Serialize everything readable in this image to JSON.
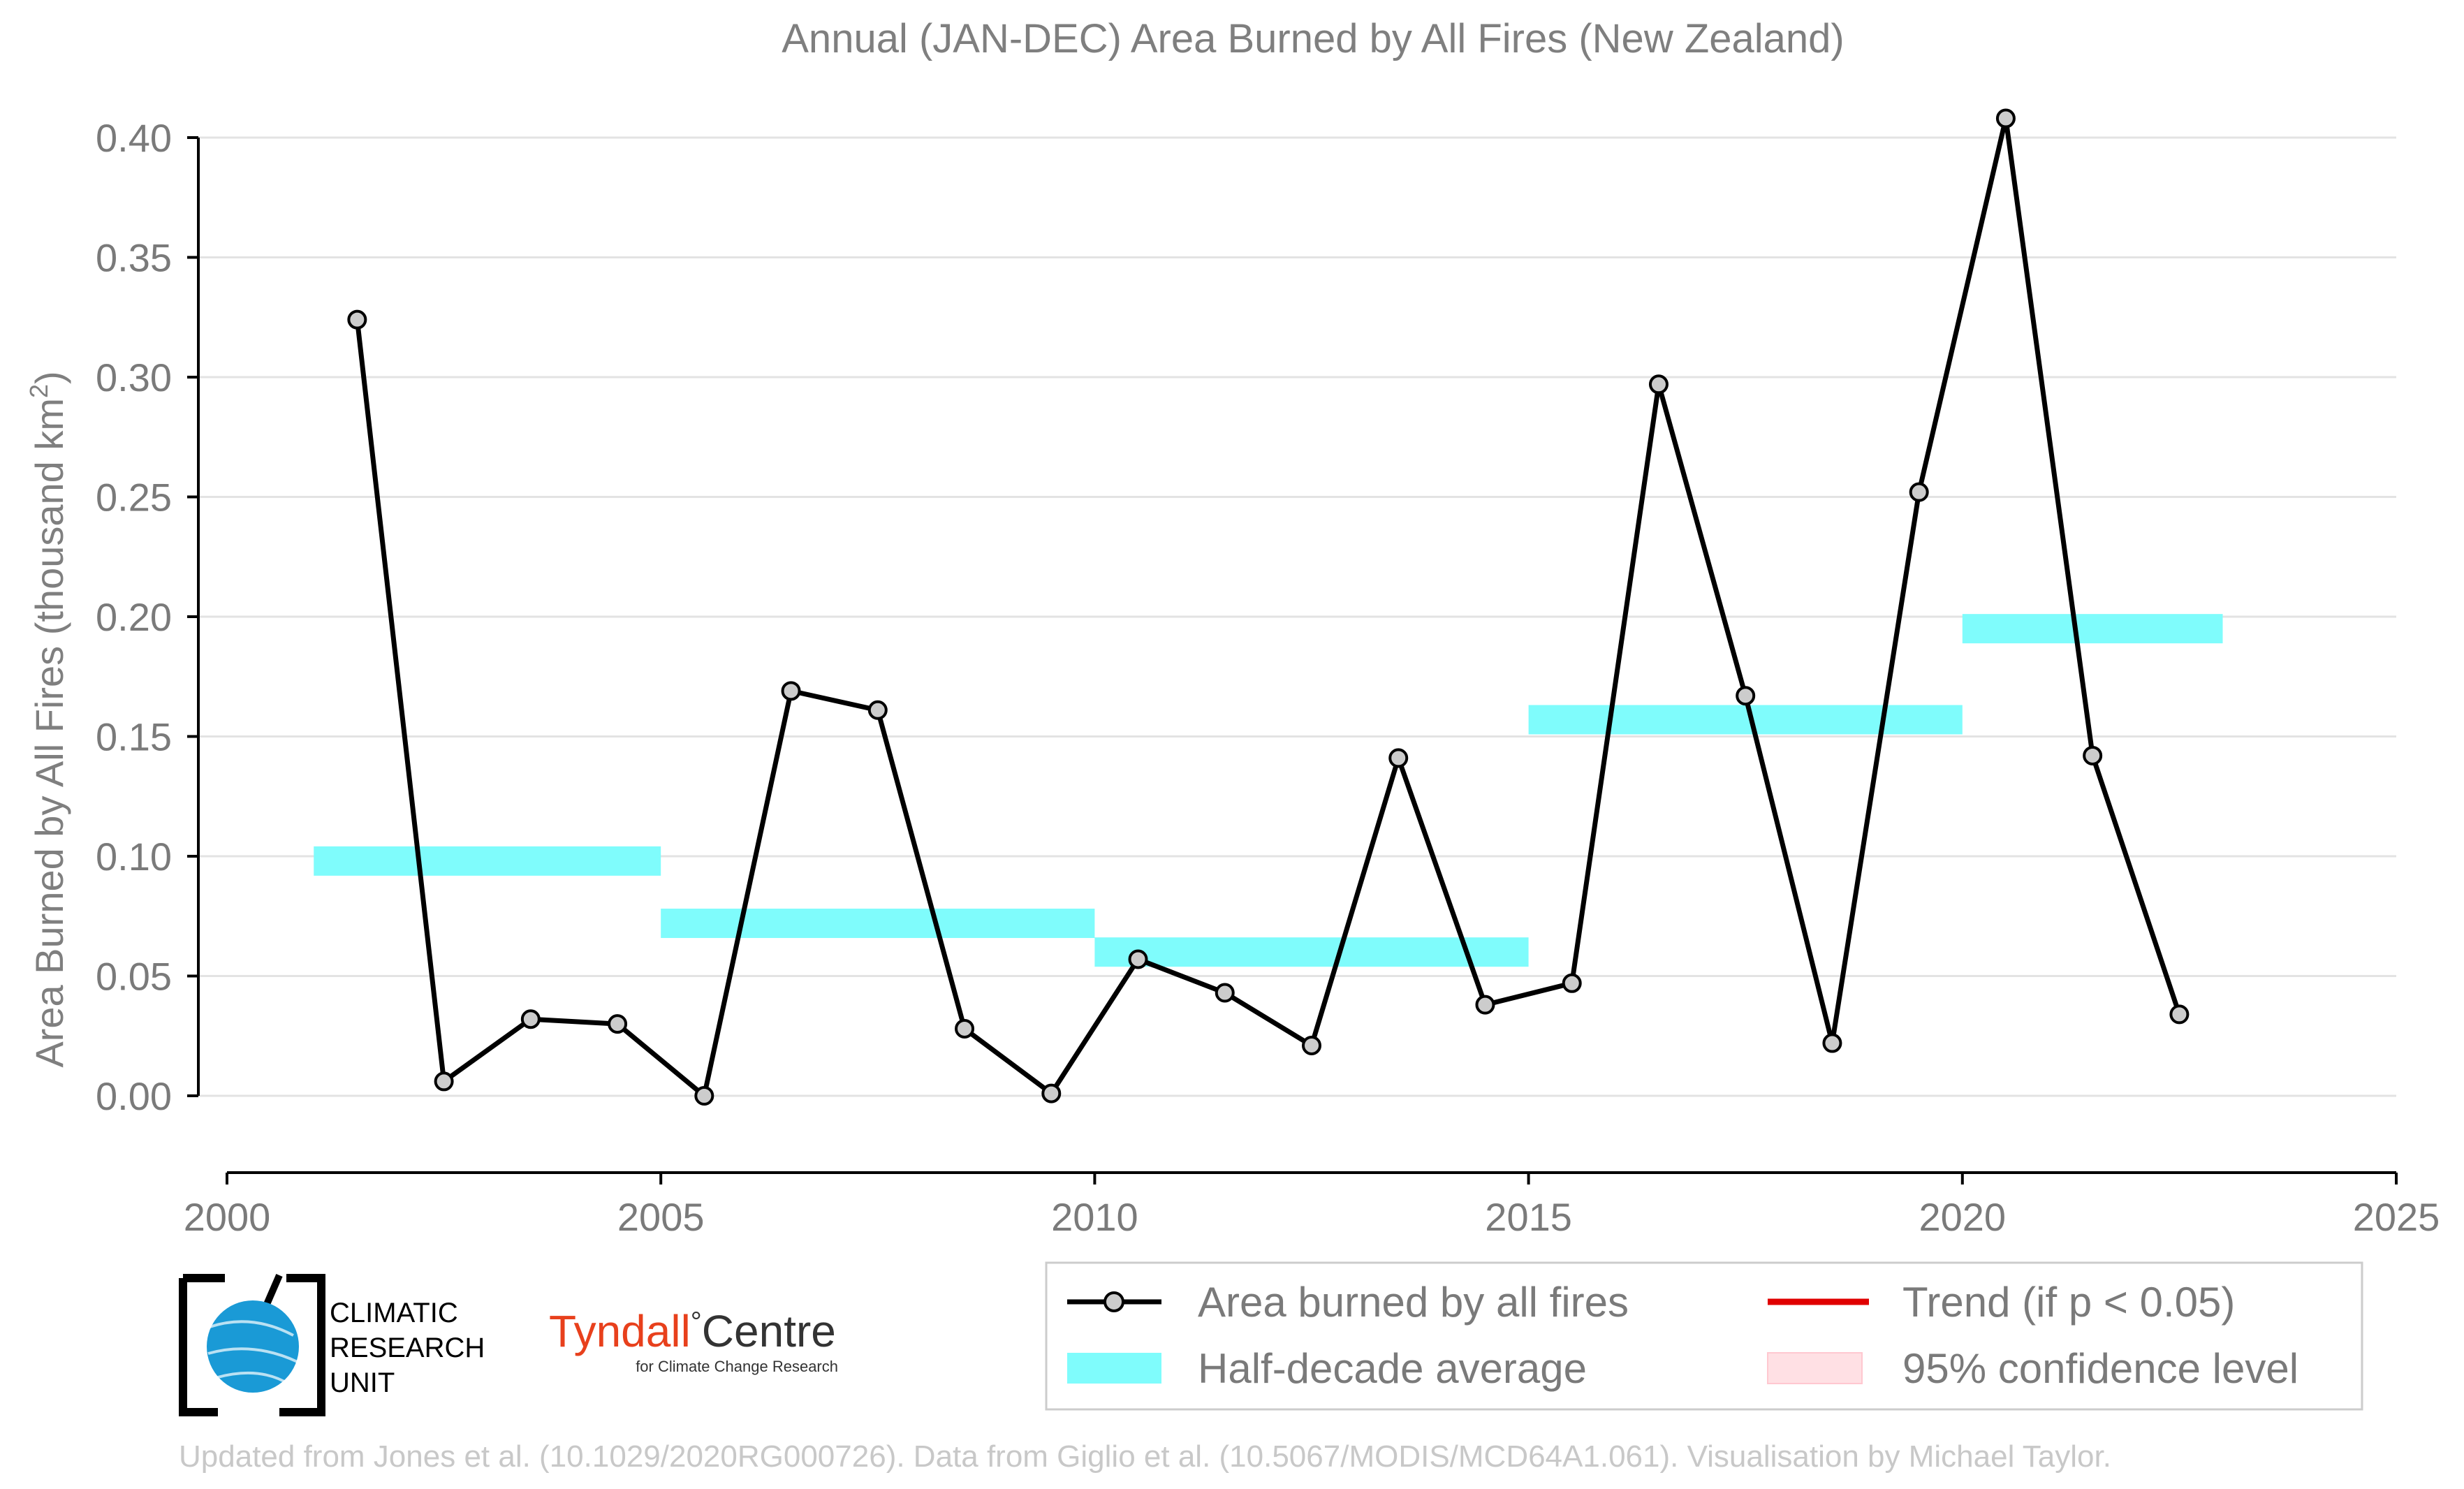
{
  "chart_data": {
    "type": "line",
    "title": "Annual (JAN-DEC) Area Burned by All Fires (New Zealand)",
    "ylabel": "Area Burned by All Fires (thousand km",
    "ylabel_sup": "2",
    "ylabel_close": ")",
    "xlabel": "",
    "xlim": [
      2000,
      2025
    ],
    "ylim": [
      -0.035,
      0.42
    ],
    "xticks": [
      "2000",
      "2005",
      "2010",
      "2015",
      "2020",
      "2025"
    ],
    "yticks": [
      "0.00",
      "0.05",
      "0.10",
      "0.15",
      "0.20",
      "0.25",
      "0.30",
      "0.35",
      "0.40"
    ],
    "grid": true,
    "series": [
      {
        "name": "Area burned by all fires",
        "color": "#000000",
        "marker_fill": "#cccccc",
        "x": [
          2001.5,
          2002.5,
          2003.5,
          2004.5,
          2005.5,
          2006.5,
          2007.5,
          2008.5,
          2009.5,
          2010.5,
          2011.5,
          2012.5,
          2013.5,
          2014.5,
          2015.5,
          2016.5,
          2017.5,
          2018.5,
          2019.5,
          2020.5,
          2021.5,
          2022.5
        ],
        "values": [
          0.324,
          0.006,
          0.032,
          0.03,
          0.0,
          0.169,
          0.161,
          0.028,
          0.001,
          0.057,
          0.043,
          0.021,
          0.141,
          0.038,
          0.047,
          0.297,
          0.167,
          0.022,
          0.252,
          0.408,
          0.142,
          0.034
        ]
      }
    ],
    "half_decade_averages": {
      "name": "Half-decade average",
      "color": "#7ffcfc",
      "segments": [
        {
          "x_start": 2001,
          "x_end": 2005,
          "value": 0.098
        },
        {
          "x_start": 2005,
          "x_end": 2010,
          "value": 0.072
        },
        {
          "x_start": 2010,
          "x_end": 2015,
          "value": 0.06
        },
        {
          "x_start": 2015,
          "x_end": 2020,
          "value": 0.157
        },
        {
          "x_start": 2020,
          "x_end": 2023,
          "value": 0.195
        }
      ]
    }
  },
  "legend": {
    "placement": "bottom-right",
    "items": [
      {
        "label": "Area burned by all fires",
        "kind": "line-marker",
        "color": "#000000"
      },
      {
        "label": "Trend (if p < 0.05)",
        "kind": "line",
        "color": "#e00000"
      },
      {
        "label": "Half-decade average",
        "kind": "patch",
        "color": "#7ffcfc"
      },
      {
        "label": "95% confidence level",
        "kind": "patch",
        "color": "#ffe0e4"
      }
    ]
  },
  "logos": {
    "cru_line1": "CLIMATIC",
    "cru_line2": "RESEARCH",
    "cru_line3": "UNIT",
    "tyndall_main": "Tyndall",
    "tyndall_degree": "°",
    "tyndall_centre": "Centre",
    "tyndall_sub": "for Climate Change Research",
    "tyndall_color": "#e8401c",
    "cru_globe_color": "#1a9ad6"
  },
  "footer": "Updated from Jones et al. (10.1029/2020RG000726). Data from Giglio et al. (10.5067/MODIS/MCD64A1.061). Visualisation by Michael Taylor."
}
